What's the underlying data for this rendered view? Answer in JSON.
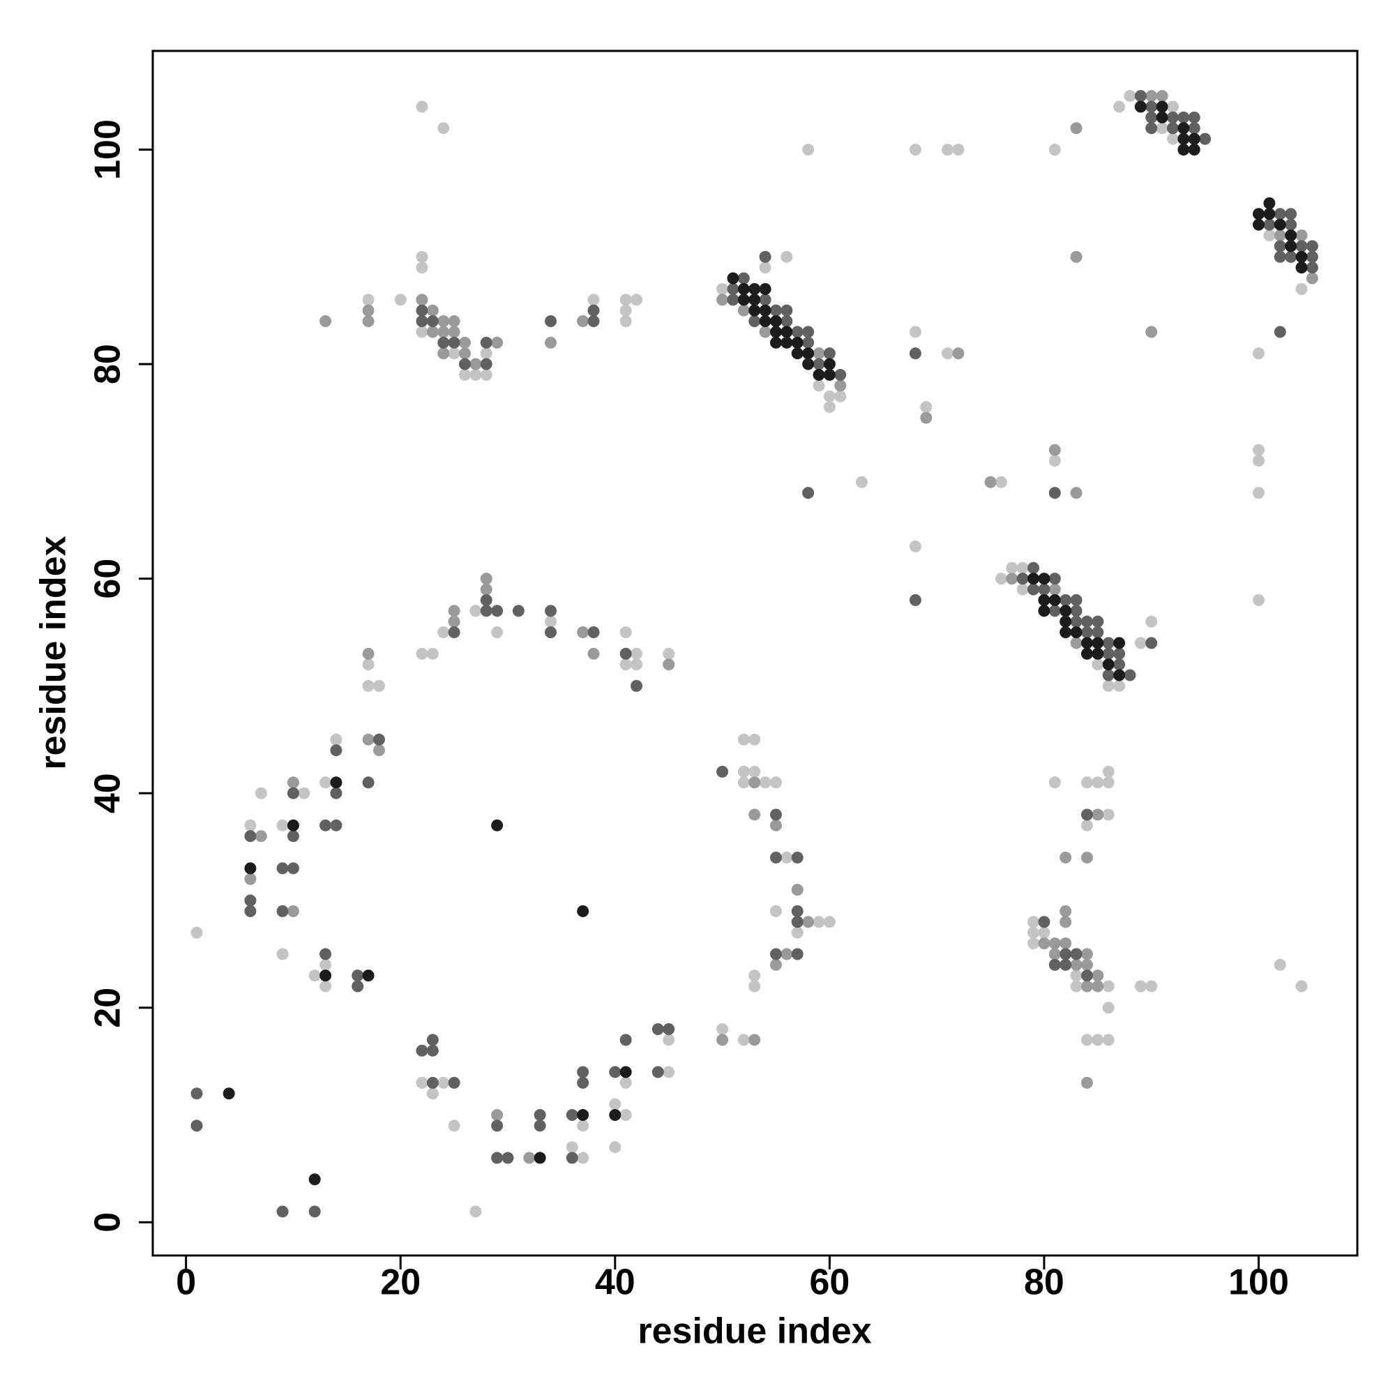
{
  "chart_data": {
    "type": "scatter",
    "x_label": "residue index",
    "y_label": "residue index",
    "xlim": [
      -3.1,
      109.2
    ],
    "ylim": [
      -3.1,
      109.2
    ],
    "xticks": [
      0,
      20,
      40,
      60,
      80,
      100
    ],
    "yticks": [
      0,
      20,
      40,
      60,
      80,
      100
    ],
    "series": [
      {
        "color": "#c4c4c4",
        "x": [
          1,
          27,
          6,
          7,
          9,
          9,
          11,
          13,
          14,
          13,
          12,
          13,
          17,
          17,
          18,
          22,
          23,
          24,
          25,
          37,
          36,
          37,
          40,
          41,
          40,
          41,
          45,
          45,
          22,
          23,
          24,
          27,
          29,
          34,
          41,
          42,
          41,
          42,
          45,
          22,
          24,
          17,
          20,
          22,
          22,
          22,
          25,
          26,
          27,
          28,
          28,
          38,
          41,
          41,
          41,
          42,
          50,
          54,
          56,
          59,
          60,
          60,
          61,
          58,
          63,
          68,
          71,
          72,
          68,
          69,
          71,
          68,
          76,
          81,
          81,
          87,
          88,
          91,
          92,
          92,
          101,
          104,
          100,
          100,
          100,
          100,
          100,
          76,
          77,
          78,
          78,
          85,
          86,
          87,
          89,
          90,
          52,
          53,
          52,
          53,
          52,
          54,
          55,
          56,
          57,
          59,
          60,
          55,
          53,
          53,
          50,
          52,
          81,
          84,
          85,
          86,
          86,
          86,
          84,
          79,
          79,
          80,
          79,
          83,
          83,
          86,
          86,
          84,
          85,
          86,
          89,
          90,
          102,
          104
        ],
        "values": [
          27,
          1,
          37,
          40,
          37,
          25,
          40,
          41,
          45,
          24,
          23,
          22,
          52,
          50,
          50,
          13,
          12,
          13,
          9,
          9,
          7,
          6,
          11,
          10,
          7,
          13,
          17,
          14,
          53,
          53,
          55,
          57,
          55,
          56,
          55,
          53,
          52,
          52,
          53,
          104,
          102,
          86,
          86,
          90,
          89,
          83,
          81,
          79,
          79,
          81,
          79,
          86,
          86,
          85,
          84,
          86,
          87,
          89,
          90,
          78,
          77,
          76,
          77,
          100,
          69,
          100,
          100,
          100,
          83,
          76,
          81,
          63,
          69,
          100,
          71,
          104,
          105,
          102,
          104,
          101,
          92,
          87,
          81,
          72,
          71,
          68,
          58,
          60,
          61,
          61,
          59,
          52,
          50,
          50,
          54,
          56,
          45,
          45,
          42,
          42,
          41,
          41,
          41,
          34,
          27,
          28,
          28,
          29,
          23,
          22,
          18,
          17,
          41,
          41,
          41,
          42,
          41,
          38,
          37,
          28,
          27,
          27,
          26,
          23,
          22,
          22,
          20,
          17,
          17,
          17,
          22,
          22,
          24,
          22
        ]
      },
      {
        "color": "#9a9a9a",
        "x": [
          7,
          6,
          10,
          10,
          17,
          18,
          17,
          29,
          32,
          25,
          25,
          28,
          28,
          37,
          38,
          45,
          13,
          17,
          17,
          22,
          23,
          23,
          24,
          24,
          24,
          25,
          25,
          26,
          26,
          27,
          29,
          34,
          37,
          50,
          52,
          54,
          59,
          61,
          69,
          72,
          75,
          83,
          81,
          83,
          83,
          90,
          91,
          102,
          104,
          105,
          90,
          77,
          81,
          83,
          53,
          53,
          55,
          57,
          58,
          56,
          55,
          50,
          53,
          85,
          82,
          84,
          82,
          82,
          80,
          81,
          82,
          81,
          84,
          83,
          84,
          85,
          84,
          85,
          84
        ],
        "values": [
          36,
          32,
          29,
          41,
          45,
          44,
          53,
          10,
          6,
          57,
          56,
          60,
          59,
          55,
          53,
          52,
          84,
          85,
          84,
          86,
          85,
          83,
          84,
          83,
          81,
          84,
          83,
          82,
          81,
          80,
          82,
          82,
          84,
          86,
          85,
          83,
          81,
          78,
          75,
          81,
          69,
          102,
          72,
          68,
          90,
          105,
          105,
          92,
          92,
          88,
          83,
          60,
          59,
          54,
          41,
          38,
          37,
          31,
          28,
          25,
          24,
          17,
          17,
          38,
          34,
          34,
          29,
          28,
          26,
          26,
          26,
          25,
          25,
          24,
          24,
          23,
          22,
          22,
          13
        ]
      },
      {
        "color": "#616161",
        "x": [
          1,
          1,
          9,
          12,
          6,
          6,
          6,
          9,
          10,
          9,
          10,
          10,
          14,
          14,
          13,
          14,
          13,
          16,
          16,
          17,
          18,
          22,
          23,
          23,
          23,
          25,
          29,
          29,
          30,
          33,
          33,
          36,
          36,
          37,
          37,
          40,
          41,
          44,
          45,
          44,
          25,
          28,
          28,
          29,
          31,
          34,
          34,
          38,
          41,
          42,
          22,
          22,
          23,
          24,
          25,
          26,
          28,
          28,
          34,
          38,
          38,
          51,
          51,
          52,
          53,
          54,
          54,
          55,
          56,
          56,
          57,
          58,
          58,
          59,
          60,
          61,
          58,
          68,
          68,
          81,
          89,
          90,
          90,
          90,
          92,
          92,
          93,
          94,
          94,
          95,
          101,
          102,
          102,
          102,
          103,
          103,
          103,
          104,
          105,
          105,
          105,
          102,
          78,
          79,
          79,
          80,
          81,
          81,
          82,
          83,
          83,
          83,
          84,
          84,
          85,
          85,
          86,
          86,
          86,
          87,
          87,
          88,
          90,
          50,
          55,
          55,
          57,
          57,
          57,
          55,
          57,
          84,
          80,
          82,
          83,
          81,
          82,
          84
        ],
        "values": [
          12,
          9,
          1,
          1,
          36,
          30,
          29,
          33,
          33,
          29,
          40,
          36,
          40,
          44,
          37,
          37,
          25,
          23,
          22,
          41,
          45,
          16,
          17,
          16,
          13,
          13,
          9,
          6,
          6,
          10,
          9,
          10,
          6,
          14,
          13,
          14,
          17,
          18,
          18,
          14,
          55,
          58,
          57,
          57,
          57,
          57,
          55,
          55,
          53,
          50,
          85,
          84,
          84,
          82,
          82,
          80,
          82,
          80,
          84,
          85,
          84,
          87,
          86,
          88,
          84,
          90,
          86,
          85,
          85,
          84,
          83,
          83,
          82,
          80,
          81,
          79,
          68,
          81,
          58,
          68,
          105,
          104,
          103,
          102,
          103,
          102,
          103,
          103,
          102,
          101,
          93,
          94,
          91,
          90,
          94,
          93,
          90,
          91,
          91,
          90,
          89,
          83,
          60,
          61,
          59,
          59,
          60,
          57,
          58,
          58,
          57,
          56,
          56,
          55,
          56,
          55,
          54,
          53,
          51,
          53,
          52,
          51,
          54,
          42,
          38,
          34,
          34,
          29,
          28,
          25,
          25,
          38,
          28,
          25,
          25,
          24,
          24,
          23
        ]
      },
      {
        "color": "#1c1c1c",
        "x": [
          4,
          12,
          6,
          10,
          14,
          13,
          17,
          29,
          37,
          33,
          37,
          41,
          40,
          51,
          52,
          52,
          53,
          53,
          53,
          54,
          54,
          54,
          55,
          55,
          55,
          56,
          56,
          57,
          57,
          58,
          58,
          59,
          60,
          60,
          89,
          91,
          91,
          93,
          93,
          93,
          94,
          94,
          100,
          100,
          101,
          101,
          102,
          103,
          103,
          104,
          104,
          79,
          80,
          80,
          80,
          81,
          82,
          82,
          82,
          83,
          84,
          84,
          85,
          85,
          86,
          87,
          87
        ],
        "values": [
          12,
          4,
          33,
          37,
          41,
          23,
          23,
          37,
          29,
          6,
          10,
          14,
          10,
          88,
          87,
          86,
          87,
          86,
          85,
          87,
          85,
          84,
          84,
          83,
          82,
          83,
          82,
          82,
          81,
          81,
          80,
          79,
          80,
          79,
          104,
          104,
          103,
          102,
          101,
          100,
          101,
          100,
          94,
          93,
          95,
          94,
          93,
          92,
          91,
          90,
          89,
          60,
          60,
          58,
          57,
          58,
          57,
          56,
          55,
          55,
          54,
          53,
          54,
          53,
          52,
          54,
          51
        ]
      }
    ]
  }
}
